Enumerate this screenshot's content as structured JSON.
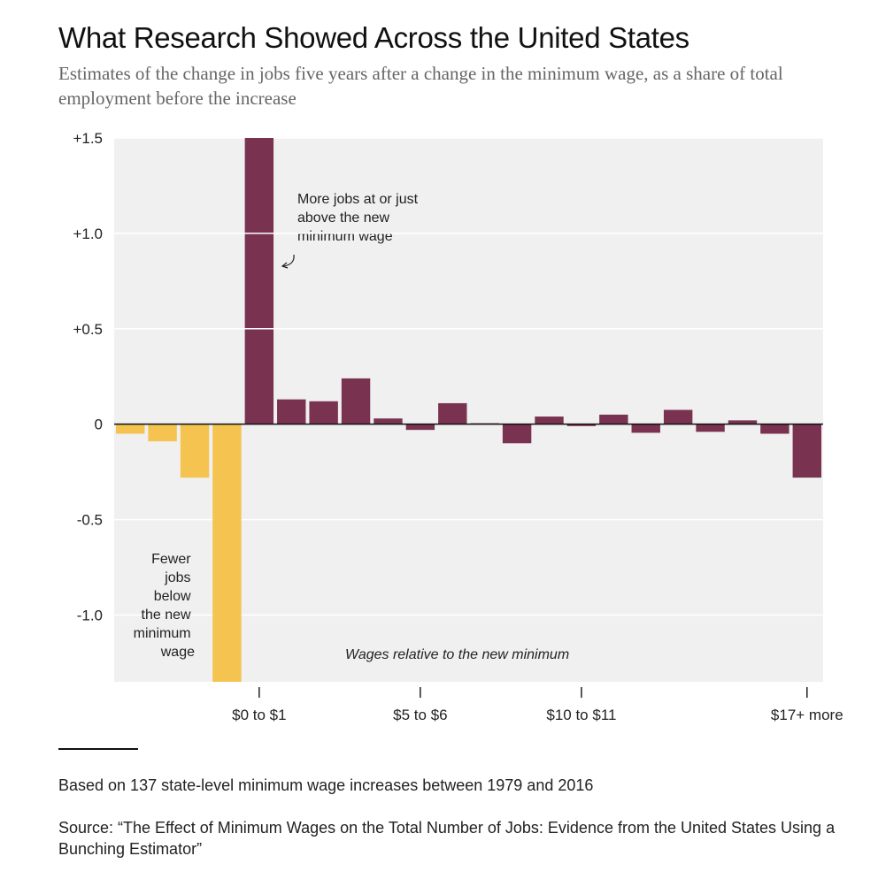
{
  "header": {
    "title": "What Research Showed Across the United States",
    "subtitle": "Estimates of the change in jobs five years after a change in the minimum wage, as a share of total employment before the increase"
  },
  "footer": {
    "note": "Based on 137 state-level minimum wage increases between 1979 and 2016",
    "source": "Source: “The Effect of Minimum Wages on the Total Number of Jobs: Evidence from the United States Using a Bunching Estimator”"
  },
  "chart_data": {
    "type": "bar",
    "title": "What Research Showed Across the United States",
    "xlabel": "Wages relative to the new minimum",
    "ylabel": "",
    "ylim": [
      -1.35,
      1.5
    ],
    "grid": true,
    "y_ticks": [
      {
        "value": 1.5,
        "label": "+1.5"
      },
      {
        "value": 1.0,
        "label": "+1.0"
      },
      {
        "value": 0.5,
        "label": "+0.5"
      },
      {
        "value": 0,
        "label": "0"
      },
      {
        "value": -0.5,
        "label": "-0.5"
      },
      {
        "value": -1.0,
        "label": "-1.0"
      }
    ],
    "x_ticks": [
      {
        "index": 4,
        "label": "$0 to $1"
      },
      {
        "index": 9,
        "label": "$5 to $6"
      },
      {
        "index": 14,
        "label": "$10 to $11"
      },
      {
        "index": 21,
        "label": "$17+ more"
      }
    ],
    "values": [
      -0.05,
      -0.09,
      -0.28,
      -1.35,
      1.5,
      0.13,
      0.12,
      0.24,
      0.03,
      -0.03,
      0.11,
      0.005,
      -0.1,
      0.04,
      -0.01,
      0.05,
      -0.045,
      0.075,
      -0.04,
      0.02,
      -0.05,
      -0.28
    ],
    "colors": {
      "below_minimum": "#f4c350",
      "at_or_above_minimum": "#79324f",
      "background": "#f0f0f0",
      "gridline": "#ffffff",
      "zero_line": "#111111"
    },
    "annotations": {
      "more_jobs": [
        "More jobs at or just",
        "above the new",
        "minimum wage"
      ],
      "fewer_jobs": [
        "Fewer",
        "jobs",
        "below",
        "the new",
        "minimum",
        "wage"
      ]
    }
  }
}
